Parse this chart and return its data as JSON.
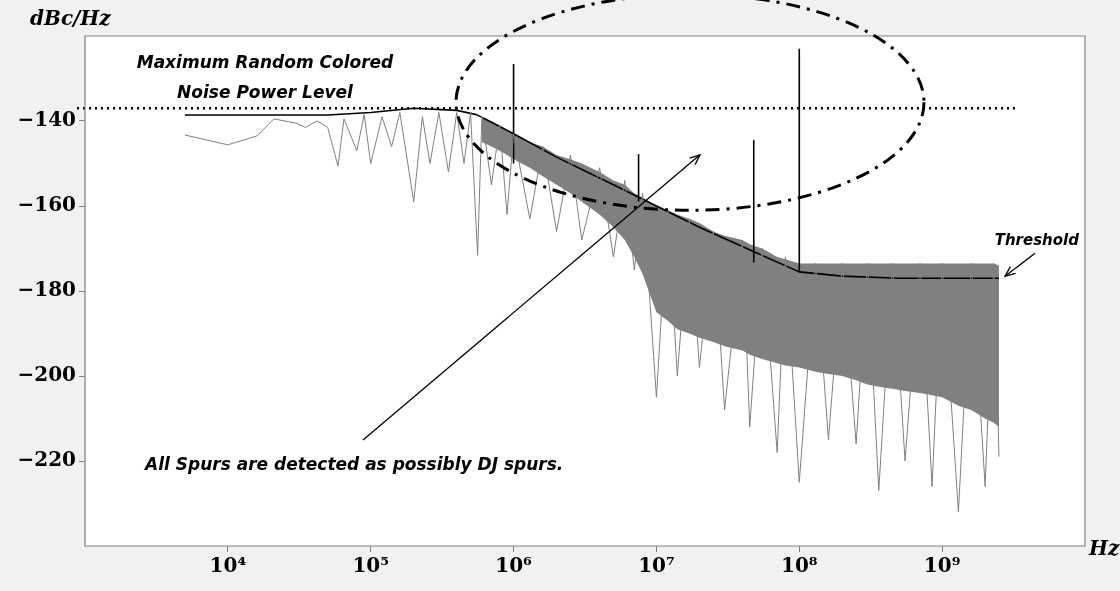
{
  "chart_data": {
    "type": "line",
    "xlabel": "Hz",
    "ylabel": "dBc/Hz",
    "log": "x",
    "grid": false,
    "legend": false,
    "marker": "none",
    "xlim": [
      1000,
      10000000000
    ],
    "xticks": [
      {
        "value": 10000,
        "label": "10⁴"
      },
      {
        "value": 100000,
        "label": "10⁵"
      },
      {
        "value": 1000000,
        "label": "10⁶"
      },
      {
        "value": 10000000,
        "label": "10⁷"
      },
      {
        "value": 100000000,
        "label": "10⁸"
      },
      {
        "value": 1000000000,
        "label": "10⁹"
      }
    ],
    "ylim": [
      -240,
      -120
    ],
    "yticks": [
      -140,
      -160,
      -180,
      -200,
      -220
    ],
    "ref_lines": [
      {
        "axis": "y",
        "value": -137,
        "label": "Maximum Random Colored Noise Power Level",
        "color": "#000000",
        "line_style": "dotted"
      }
    ],
    "annotations": [
      "All Spurs are detected as possibly DJ spurs."
    ],
    "series": [
      {
        "color": "#808080",
        "x": [
          5000,
          10000,
          16000,
          21000,
          30000,
          35000,
          42000,
          50000,
          59000,
          65000,
          80000,
          90000,
          100000,
          120000,
          140000,
          160000,
          200000,
          230000,
          260000,
          300000,
          350000,
          400000,
          450000,
          500000,
          560000,
          600000,
          700000,
          800000,
          900000,
          1000000,
          1300000,
          1600000,
          2000000,
          2500000,
          3000000,
          4000000,
          5000000,
          6000000,
          7000000,
          8000000,
          10000000,
          12000000,
          14000000,
          17000000,
          20000000,
          25000000,
          30000000,
          40000000,
          45000000,
          55000000,
          70000000,
          80000000,
          100000000,
          130000000,
          160000000,
          200000000,
          250000000,
          300000000,
          360000000,
          450000000,
          550000000,
          700000000,
          850000000,
          1000000000,
          1300000000,
          1600000000,
          2000000000,
          2300000000,
          2500000000
        ],
        "values": [
          -143.3,
          -145.6,
          -143.5,
          -139.5,
          -140.5,
          -141.5,
          -140,
          -141.5,
          -150.6,
          -139.5,
          -147,
          -138.5,
          -150,
          -139,
          -146,
          -138,
          -159,
          -139,
          -150,
          -138,
          -152,
          -138,
          -150,
          -138,
          -171.6,
          -139,
          -155,
          -141,
          -162,
          -143,
          -163,
          -146,
          -166,
          -148,
          -168,
          -151,
          -172,
          -154,
          -175,
          -157,
          -205,
          -161,
          -200,
          -163,
          -198,
          -166,
          -208,
          -168,
          -212,
          -170,
          -218,
          -172,
          -225,
          -173.5,
          -215,
          -173.5,
          -216,
          -173.5,
          -227,
          -173.5,
          -220,
          -173.5,
          -226,
          -173.5,
          -232,
          -173.5,
          -226,
          -173.5,
          -219
        ],
        "lower": [
          null,
          null,
          null,
          null,
          null,
          null,
          null,
          null,
          null,
          null,
          null,
          null,
          null,
          null,
          null,
          null,
          null,
          null,
          null,
          null,
          null,
          null,
          null,
          null,
          null,
          -145,
          -146,
          -147,
          -148,
          -149,
          -151,
          -153,
          -155,
          -157,
          -159,
          -162,
          -165,
          -168,
          -172,
          -176,
          -185,
          -187,
          -189,
          -190,
          -191,
          -192,
          -193,
          -194,
          -195,
          -196,
          -197,
          -197.5,
          -198,
          -199,
          -199.5,
          -200,
          -201,
          -202,
          -202.5,
          -203,
          -203.5,
          -204,
          -204.5,
          -205,
          -207,
          -208,
          -210,
          -211,
          -212
        ],
        "upper": [
          null,
          null,
          null,
          null,
          null,
          null,
          null,
          null,
          null,
          null,
          null,
          null,
          null,
          null,
          null,
          null,
          null,
          null,
          null,
          null,
          null,
          null,
          null,
          null,
          null,
          -139,
          -140,
          -141,
          -142,
          -143,
          -145,
          -146,
          -148,
          -149,
          -150,
          -152,
          -154,
          -155,
          -157,
          -158,
          -160,
          -161,
          -162,
          -163,
          -164,
          -166,
          -167,
          -168,
          -169,
          -170,
          -172,
          -172.5,
          -173.5,
          -173.5,
          -173.5,
          -173.5,
          -173.5,
          -173.5,
          -173.5,
          -173.5,
          -173.5,
          -173.5,
          -173.5,
          -173.5,
          -173.5,
          -173.5,
          -173.5,
          -173.5,
          -174
        ]
      },
      {
        "name": "Threshold",
        "color": "#000000",
        "x": [
          5000,
          50000,
          100000,
          200000,
          400000,
          550000,
          1000000,
          2000000,
          5000000,
          10000000,
          20000000,
          50000000,
          100000000,
          200000000,
          500000000,
          2500000000
        ],
        "values": [
          -138.6,
          -138.6,
          -138,
          -137,
          -137.5,
          -138.5,
          -143,
          -148.5,
          -155,
          -160,
          -165,
          -171,
          -175.5,
          -176.5,
          -177,
          -177
        ]
      },
      {
        "color": "#000000",
        "x": [
          1000000,
          1000000
        ],
        "values": [
          -150,
          -126.6
        ]
      },
      {
        "color": "#000000",
        "x": [
          7500000,
          7500000
        ],
        "values": [
          -159,
          -147.8
        ]
      },
      {
        "color": "#000000",
        "x": [
          48000000,
          48000000
        ],
        "values": [
          -173.3,
          -144.5
        ]
      },
      {
        "color": "#000000",
        "x": [
          100000000,
          100000000
        ],
        "values": [
          -175.6,
          -123
        ]
      }
    ]
  }
}
